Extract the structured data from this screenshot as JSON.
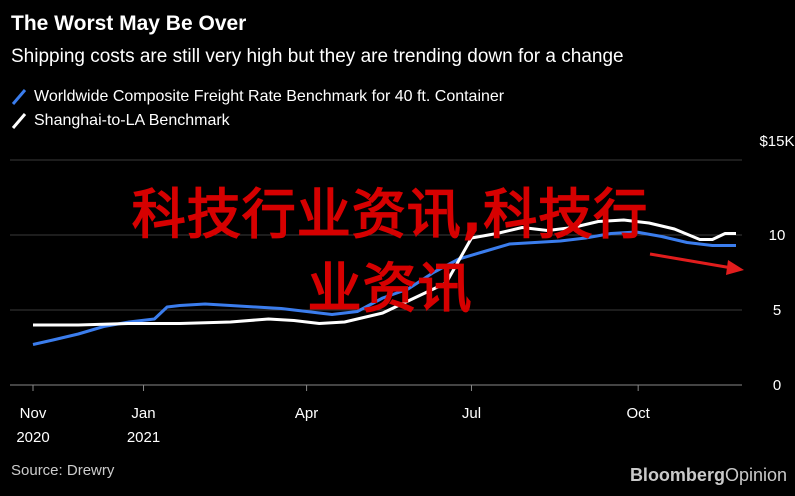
{
  "header": {
    "title": "The Worst May Be Over",
    "subtitle": "Shipping costs are still very high but they are trending down for a change"
  },
  "footer": {
    "source": "Source: Drewry",
    "brand_bold": "Bloomberg",
    "brand_regular": "Opinion"
  },
  "overlay": {
    "watermark_line1": "科技行业资讯,科技行",
    "watermark_line2": "业资讯"
  },
  "colors": {
    "background": "#000000",
    "series_worldwide": "#3b7ded",
    "series_shanghai": "#ffffff",
    "arrow": "#e11d1d",
    "watermark": "#d60000",
    "grid": "#3a3a3a"
  },
  "chart_data": {
    "type": "line",
    "y_unit_label": "$15K",
    "ylim": [
      0,
      15
    ],
    "y_ticks": [
      {
        "value": 15,
        "label": "$15K"
      },
      {
        "value": 10,
        "label": "10"
      },
      {
        "value": 5,
        "label": "5"
      },
      {
        "value": 0,
        "label": "0"
      }
    ],
    "x_range": [
      "2020-11-01",
      "2021-11-24"
    ],
    "x_ticks": [
      {
        "date": "2020-11-01",
        "label": "Nov",
        "sublabel": "2020"
      },
      {
        "date": "2021-01-01",
        "label": "Jan",
        "sublabel": "2021"
      },
      {
        "date": "2021-04-01",
        "label": "Apr",
        "sublabel": ""
      },
      {
        "date": "2021-07-01",
        "label": "Jul",
        "sublabel": ""
      },
      {
        "date": "2021-10-01",
        "label": "Oct",
        "sublabel": ""
      }
    ],
    "grid": true,
    "legend_position": "top-left",
    "series": [
      {
        "name": "Worldwide Composite Freight Rate Benchmark for 40 ft. Container",
        "color": "#3b7ded",
        "points": [
          [
            "2020-11-01",
            2.7
          ],
          [
            "2020-11-12",
            3.0
          ],
          [
            "2020-11-26",
            3.4
          ],
          [
            "2020-12-10",
            3.9
          ],
          [
            "2020-12-24",
            4.2
          ],
          [
            "2021-01-07",
            4.4
          ],
          [
            "2021-01-14",
            5.2
          ],
          [
            "2021-01-21",
            5.3
          ],
          [
            "2021-02-04",
            5.4
          ],
          [
            "2021-02-18",
            5.3
          ],
          [
            "2021-03-04",
            5.2
          ],
          [
            "2021-03-18",
            5.1
          ],
          [
            "2021-04-01",
            4.9
          ],
          [
            "2021-04-15",
            4.7
          ],
          [
            "2021-04-29",
            4.9
          ],
          [
            "2021-05-13",
            5.8
          ],
          [
            "2021-05-27",
            6.4
          ],
          [
            "2021-06-10",
            7.5
          ],
          [
            "2021-06-24",
            8.4
          ],
          [
            "2021-07-08",
            8.9
          ],
          [
            "2021-07-22",
            9.4
          ],
          [
            "2021-08-05",
            9.5
          ],
          [
            "2021-08-19",
            9.6
          ],
          [
            "2021-09-02",
            9.8
          ],
          [
            "2021-09-16",
            10.1
          ],
          [
            "2021-09-30",
            10.2
          ],
          [
            "2021-10-14",
            9.9
          ],
          [
            "2021-10-28",
            9.5
          ],
          [
            "2021-11-11",
            9.3
          ],
          [
            "2021-11-24",
            9.3
          ]
        ]
      },
      {
        "name": "Shanghai-to-LA Benchmark",
        "color": "#ffffff",
        "points": [
          [
            "2020-11-01",
            4.0
          ],
          [
            "2020-11-26",
            4.0
          ],
          [
            "2020-12-24",
            4.1
          ],
          [
            "2021-01-21",
            4.1
          ],
          [
            "2021-02-18",
            4.2
          ],
          [
            "2021-03-11",
            4.4
          ],
          [
            "2021-03-25",
            4.3
          ],
          [
            "2021-04-08",
            4.1
          ],
          [
            "2021-04-22",
            4.2
          ],
          [
            "2021-05-13",
            4.8
          ],
          [
            "2021-06-03",
            6.0
          ],
          [
            "2021-06-17",
            6.8
          ],
          [
            "2021-07-01",
            9.8
          ],
          [
            "2021-07-15",
            10.1
          ],
          [
            "2021-07-29",
            10.5
          ],
          [
            "2021-08-12",
            10.3
          ],
          [
            "2021-08-26",
            10.5
          ],
          [
            "2021-09-09",
            10.9
          ],
          [
            "2021-09-23",
            11.0
          ],
          [
            "2021-10-07",
            10.8
          ],
          [
            "2021-10-21",
            10.4
          ],
          [
            "2021-11-04",
            9.7
          ],
          [
            "2021-11-11",
            9.7
          ],
          [
            "2021-11-18",
            10.1
          ],
          [
            "2021-11-24",
            10.1
          ]
        ]
      }
    ]
  }
}
